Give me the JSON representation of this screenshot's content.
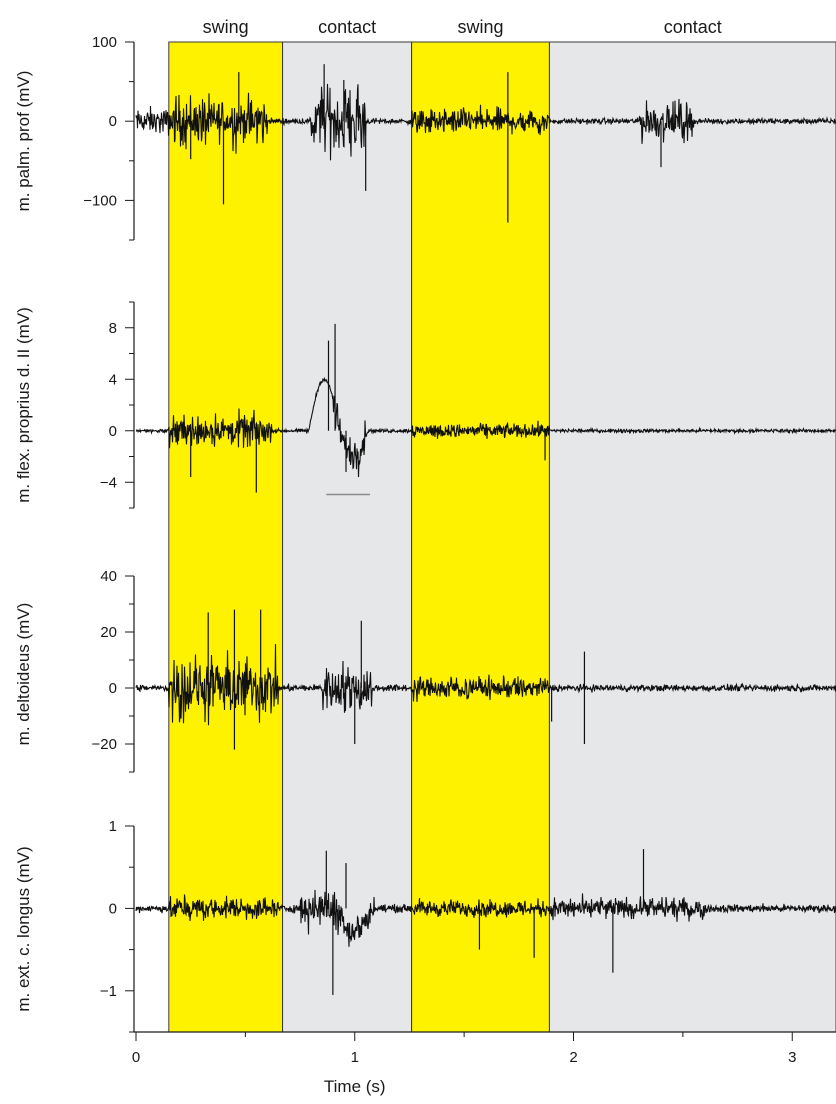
{
  "chart_data": {
    "type": "line",
    "xlabel": "Time (s)",
    "xlim": [
      0,
      3.2
    ],
    "x_ticks": [
      0,
      1,
      2,
      3
    ],
    "phases": [
      {
        "label": "swing",
        "start": 0.15,
        "end": 0.67,
        "color": "#fff200"
      },
      {
        "label": "contact",
        "start": 0.67,
        "end": 1.26,
        "color": "#e6e7e9"
      },
      {
        "label": "swing",
        "start": 1.26,
        "end": 1.89,
        "color": "#fff200"
      },
      {
        "label": "contact",
        "start": 1.89,
        "end": 3.2,
        "color": "#e6e7e9"
      }
    ],
    "panels": [
      {
        "ylabel": "m. palm. prof (mV)",
        "ylim": [
          -150,
          100
        ],
        "y_ticks": [
          -100,
          0,
          100
        ],
        "series": {
          "baseline": 0,
          "noise": 3,
          "bursts": [
            {
              "t0": 0.0,
              "t1": 0.15,
              "amp": 14
            },
            {
              "t0": 0.15,
              "t1": 0.6,
              "amp": 30
            },
            {
              "t0": 0.8,
              "t1": 1.05,
              "amp": 45
            },
            {
              "t0": 1.26,
              "t1": 1.89,
              "amp": 13
            },
            {
              "t0": 2.3,
              "t1": 2.55,
              "amp": 22
            }
          ],
          "spikes": [
            {
              "t": 0.4,
              "v": -105
            },
            {
              "t": 0.47,
              "v": 62
            },
            {
              "t": 0.25,
              "v": -48
            },
            {
              "t": 0.86,
              "v": 72
            },
            {
              "t": 1.05,
              "v": -88
            },
            {
              "t": 0.95,
              "v": 52
            },
            {
              "t": 1.7,
              "v": -128
            },
            {
              "t": 1.7,
              "v": 62
            },
            {
              "t": 2.4,
              "v": -58
            }
          ],
          "waves": []
        }
      },
      {
        "ylabel": "m. flex. proprius d. II (mV)",
        "ylim": [
          -6,
          10
        ],
        "y_ticks": [
          -4,
          0,
          4,
          8
        ],
        "series": {
          "baseline": 0,
          "noise": 0.12,
          "bursts": [
            {
              "t0": 0.15,
              "t1": 0.62,
              "amp": 1.2
            },
            {
              "t0": 0.9,
              "t1": 1.05,
              "amp": 1.4
            },
            {
              "t0": 1.26,
              "t1": 1.89,
              "amp": 0.45
            }
          ],
          "spikes": [
            {
              "t": 0.55,
              "v": -4.8
            },
            {
              "t": 0.91,
              "v": 8.3
            },
            {
              "t": 0.88,
              "v": 7.0
            },
            {
              "t": 0.25,
              "v": -3.6
            },
            {
              "t": 0.96,
              "v": -3.2
            },
            {
              "t": 1.87,
              "v": -2.3
            }
          ],
          "waves": [
            {
              "t0": 0.79,
              "t1": 0.93,
              "amp": 4.0
            },
            {
              "t0": 0.93,
              "t1": 1.06,
              "amp": -2.0
            }
          ]
        },
        "marker": {
          "t0": 0.87,
          "t1": 1.07,
          "v": -4.95
        }
      },
      {
        "ylabel": "m. deltoideus (mV)",
        "ylim": [
          -30,
          40
        ],
        "y_ticks": [
          -20,
          0,
          20,
          40
        ],
        "series": {
          "baseline": 0,
          "noise": 1.0,
          "bursts": [
            {
              "t0": 0.15,
              "t1": 0.65,
              "amp": 11
            },
            {
              "t0": 0.85,
              "t1": 1.08,
              "amp": 8
            },
            {
              "t0": 1.26,
              "t1": 1.89,
              "amp": 3
            }
          ],
          "spikes": [
            {
              "t": 0.33,
              "v": 27
            },
            {
              "t": 0.45,
              "v": 28
            },
            {
              "t": 0.45,
              "v": -22
            },
            {
              "t": 0.57,
              "v": 28
            },
            {
              "t": 1.03,
              "v": 24
            },
            {
              "t": 1.0,
              "v": -20
            },
            {
              "t": 1.9,
              "v": -12
            },
            {
              "t": 2.05,
              "v": -20
            },
            {
              "t": 2.05,
              "v": 13
            }
          ],
          "waves": []
        }
      },
      {
        "ylabel": "m. ext. c. longus (mV)",
        "ylim": [
          -1.5,
          1
        ],
        "y_ticks": [
          -1,
          0,
          1
        ],
        "series": {
          "baseline": 0,
          "noise": 0.04,
          "bursts": [
            {
              "t0": 0.15,
              "t1": 0.65,
              "amp": 0.1
            },
            {
              "t0": 0.75,
              "t1": 1.1,
              "amp": 0.2
            },
            {
              "t0": 1.26,
              "t1": 1.89,
              "amp": 0.06
            },
            {
              "t0": 1.89,
              "t1": 2.6,
              "amp": 0.09
            }
          ],
          "spikes": [
            {
              "t": 0.87,
              "v": 0.7
            },
            {
              "t": 0.9,
              "v": -1.05
            },
            {
              "t": 0.96,
              "v": 0.55
            },
            {
              "t": 2.32,
              "v": 0.72
            },
            {
              "t": 2.18,
              "v": -0.78
            },
            {
              "t": 1.57,
              "v": -0.5
            },
            {
              "t": 1.82,
              "v": -0.6
            }
          ],
          "waves": [
            {
              "t0": 0.92,
              "t1": 1.08,
              "amp": -0.28
            }
          ]
        }
      }
    ]
  }
}
